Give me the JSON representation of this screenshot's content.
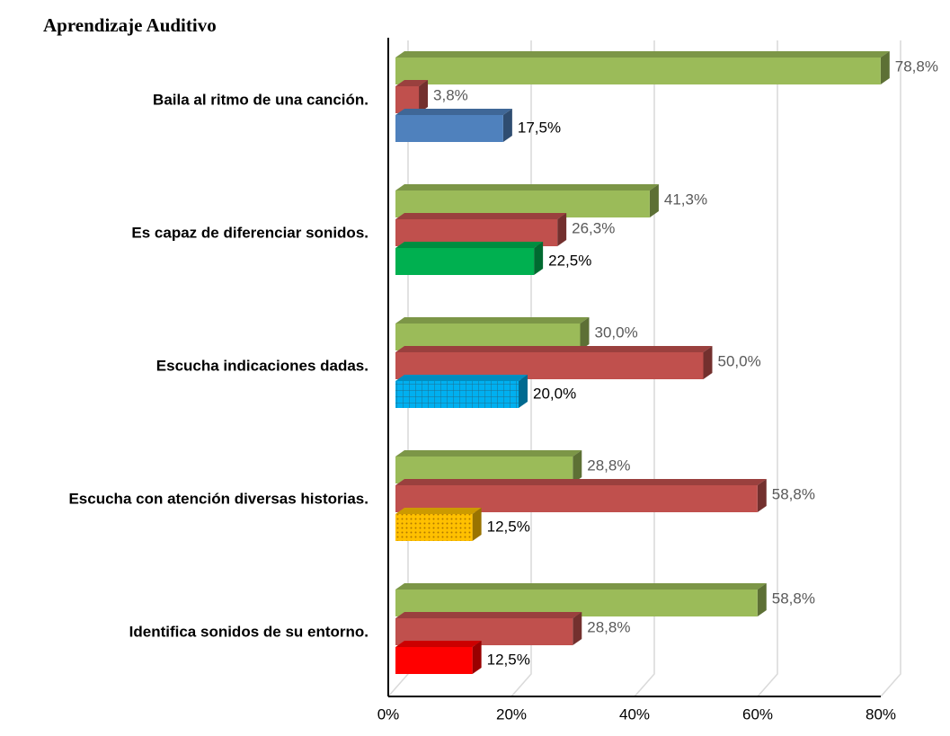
{
  "chart_data": {
    "type": "bar3d_horizontal",
    "title": "Aprendizaje Auditivo",
    "categories": [
      "Baila al ritmo de una canción.",
      "Es capaz de diferenciar sonidos.",
      "Escucha indicaciones dadas.",
      "Escucha con atención diversas historias.",
      "Identifica sonidos de su entorno."
    ],
    "series": [
      {
        "color": "#9bbb59",
        "values": [
          78.8,
          41.3,
          30.0,
          28.8,
          58.8
        ],
        "value_labels": [
          "78,8%",
          "41,3%",
          "30,0%",
          "28,8%",
          "58,8%"
        ]
      },
      {
        "color": "#c0504d",
        "values": [
          3.8,
          26.3,
          50.0,
          58.8,
          28.8
        ],
        "value_labels": [
          "3,8%",
          "26,3%",
          "50,0%",
          "58,8%",
          "28,8%"
        ]
      },
      {
        "colors": [
          "#4f81bd",
          "#00b050",
          "#00b0f0",
          "#ffc000",
          "#ff0000"
        ],
        "patterns": [
          null,
          null,
          "grid",
          "dots",
          null
        ],
        "values": [
          17.5,
          22.5,
          20.0,
          12.5,
          12.5
        ],
        "value_labels": [
          "17,5%",
          "22,5%",
          "20,0%",
          "12,5%",
          "12,5%"
        ]
      }
    ],
    "xlim": [
      0,
      80
    ],
    "xticks": [
      {
        "value": 0,
        "label": "0%"
      },
      {
        "value": 20,
        "label": "20%"
      },
      {
        "value": 40,
        "label": "40%"
      },
      {
        "value": 60,
        "label": "60%"
      },
      {
        "value": 80,
        "label": "80%"
      }
    ],
    "grid": true
  }
}
